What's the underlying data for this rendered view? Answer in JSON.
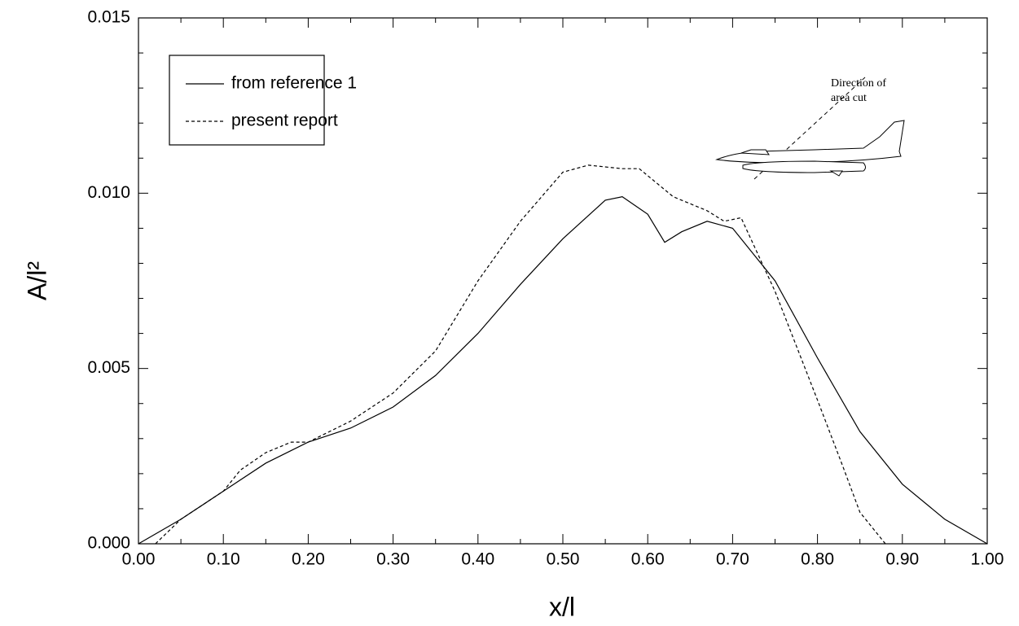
{
  "chart_data": {
    "type": "line",
    "xlabel": "x/l",
    "ylabel": "A/l²",
    "annotation": [
      "Direction of",
      "area cut"
    ],
    "xlim": [
      0,
      1
    ],
    "ylim": [
      0,
      0.015
    ],
    "xticks": [
      {
        "value": 0,
        "label": "0.00"
      },
      {
        "value": 0.1,
        "label": "0.10"
      },
      {
        "value": 0.2,
        "label": "0.20"
      },
      {
        "value": 0.3,
        "label": "0.30"
      },
      {
        "value": 0.4,
        "label": "0.40"
      },
      {
        "value": 0.5,
        "label": "0.50"
      },
      {
        "value": 0.6,
        "label": "0.60"
      },
      {
        "value": 0.7,
        "label": "0.70"
      },
      {
        "value": 0.8,
        "label": "0.80"
      },
      {
        "value": 0.9,
        "label": "0.90"
      },
      {
        "value": 1,
        "label": "1.00"
      }
    ],
    "yticks": [
      {
        "value": 0,
        "label": "0.000"
      },
      {
        "value": 0.005,
        "label": "0.005"
      },
      {
        "value": 0.01,
        "label": "0.010"
      },
      {
        "value": 0.015,
        "label": "0.015"
      }
    ],
    "xminorticks": [
      0.05,
      0.15,
      0.25,
      0.35,
      0.45,
      0.55,
      0.65,
      0.75,
      0.85,
      0.95
    ],
    "yminorticks": [
      0.001,
      0.002,
      0.003,
      0.004,
      0.006,
      0.007,
      0.008,
      0.009,
      0.011,
      0.012,
      0.013,
      0.014
    ],
    "grid": false,
    "legend": "upper left",
    "series": [
      {
        "name": "from reference 1",
        "color": "#000",
        "dash": "none",
        "x": [
          0,
          0.05,
          0.1,
          0.15,
          0.2,
          0.25,
          0.3,
          0.35,
          0.4,
          0.45,
          0.5,
          0.55,
          0.57,
          0.6,
          0.62,
          0.64,
          0.67,
          0.7,
          0.75,
          0.8,
          0.85,
          0.9,
          0.95,
          1
        ],
        "values": [
          0,
          0.0007,
          0.0015,
          0.0023,
          0.0029,
          0.0033,
          0.0039,
          0.0048,
          0.006,
          0.0074,
          0.0087,
          0.0098,
          0.0099,
          0.0094,
          0.0086,
          0.0089,
          0.0092,
          0.009,
          0.0075,
          0.0053,
          0.0032,
          0.0017,
          0.0007,
          0
        ]
      },
      {
        "name": "present report",
        "color": "#000",
        "dash": "4 3",
        "x": [
          0.02,
          0.05,
          0.1,
          0.12,
          0.15,
          0.18,
          0.2,
          0.25,
          0.3,
          0.35,
          0.4,
          0.45,
          0.5,
          0.53,
          0.57,
          0.59,
          0.63,
          0.67,
          0.69,
          0.71,
          0.75,
          0.8,
          0.83,
          0.85,
          0.87,
          0.88
        ],
        "values": [
          0,
          0.0007,
          0.0015,
          0.0021,
          0.0026,
          0.0029,
          0.0029,
          0.0035,
          0.0043,
          0.0055,
          0.0075,
          0.0092,
          0.0106,
          0.0108,
          0.0107,
          0.0107,
          0.0099,
          0.0095,
          0.0092,
          0.0093,
          0.0072,
          0.0041,
          0.0022,
          0.0009,
          0.0003,
          0
        ]
      }
    ]
  }
}
